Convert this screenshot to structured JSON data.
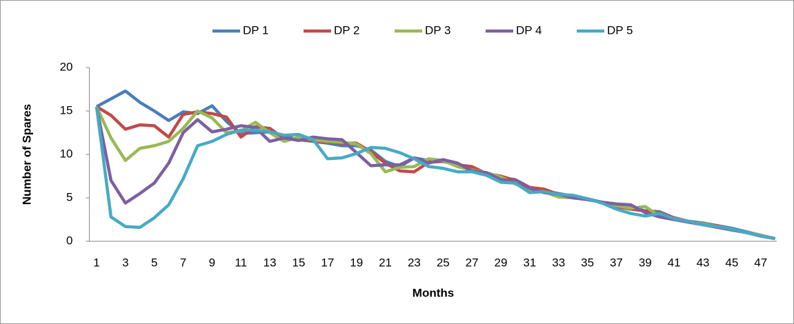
{
  "chart_data": {
    "type": "line",
    "x_label": "Months",
    "y_label": "Number of Spares",
    "categories": [
      1,
      null,
      3,
      null,
      5,
      null,
      7,
      null,
      9,
      null,
      11,
      null,
      13,
      null,
      15,
      null,
      17,
      null,
      19,
      null,
      21,
      null,
      23,
      null,
      25,
      null,
      27,
      null,
      29,
      null,
      31,
      null,
      33,
      null,
      35,
      null,
      37,
      null,
      39,
      null,
      41,
      null,
      43,
      null,
      45,
      null,
      47,
      null
    ],
    "series": [
      {
        "name": "DP 1",
        "color": "#4a7ebb",
        "values": [
          15.5,
          16.4,
          17.3,
          16,
          15,
          13.9,
          14.9,
          14.7,
          15.6,
          13.8,
          12.4,
          12.5,
          12.6,
          12.1,
          11.7,
          11.5,
          11.3,
          11,
          11,
          10.5,
          9.2,
          8.6,
          9.6,
          9.3,
          9.2,
          8.8,
          8.3,
          7.8,
          7.3,
          7.1,
          6.2,
          5.8,
          5.5,
          5.2,
          4.9,
          4.5,
          4.2,
          3.9,
          3.5,
          3.4,
          2.7,
          2.3,
          2.1,
          1.8,
          1.5,
          1.1,
          0.7,
          0.3
        ]
      },
      {
        "name": "DP 2",
        "color": "#be4b48",
        "values": [
          15.5,
          14.5,
          12.9,
          13.4,
          13.3,
          12,
          14.6,
          14.9,
          14.7,
          14.3,
          12,
          13.2,
          13,
          11.8,
          11.7,
          11.6,
          11.4,
          11.3,
          11.3,
          10.3,
          9,
          8.1,
          8,
          9.1,
          9.2,
          8.8,
          8.6,
          7.8,
          7.5,
          7,
          6.2,
          6,
          5.4,
          5.1,
          4.8,
          4.5,
          4,
          3.7,
          3.5,
          3.3,
          2.7,
          2.3,
          2,
          1.8,
          1.4,
          1,
          0.7,
          0.3
        ]
      },
      {
        "name": "DP 3",
        "color": "#98b954",
        "values": [
          15.5,
          11.9,
          9.3,
          10.7,
          11,
          11.5,
          13,
          15,
          14.2,
          12.5,
          12.7,
          13.7,
          12.5,
          11.5,
          12,
          11.7,
          11.5,
          11.4,
          11.2,
          10.1,
          8,
          8.5,
          8.6,
          9.5,
          9.3,
          8.6,
          8.2,
          7.9,
          7.4,
          6.6,
          5.9,
          5.7,
          5.1,
          5,
          4.8,
          4.5,
          4.1,
          3.8,
          4,
          2.9,
          2.6,
          2.2,
          2,
          1.7,
          1.4,
          1,
          0.7,
          0.3
        ]
      },
      {
        "name": "DP 4",
        "color": "#7d5fa0",
        "values": [
          15.5,
          7,
          4.4,
          5.5,
          6.7,
          9,
          12.5,
          14,
          12.6,
          12.9,
          13.3,
          13.1,
          11.5,
          11.9,
          11.6,
          12,
          11.8,
          11.7,
          10.2,
          8.7,
          8.8,
          8.8,
          9.6,
          9,
          9.4,
          9,
          8.1,
          7.9,
          7.1,
          6.9,
          6.1,
          5.6,
          5.4,
          5,
          4.8,
          4.5,
          4.3,
          4.2,
          3.3,
          2.8,
          2.5,
          2.2,
          1.9,
          1.6,
          1.3,
          1,
          0.6,
          0.3
        ]
      },
      {
        "name": "DP 5",
        "color": "#46aac5",
        "values": [
          15.5,
          2.8,
          1.7,
          1.6,
          2.7,
          4.2,
          7.2,
          11,
          11.5,
          12.3,
          12.8,
          12.8,
          12.6,
          12.2,
          12.3,
          11.7,
          9.5,
          9.6,
          10.1,
          10.8,
          10.7,
          10.2,
          9.5,
          8.6,
          8.4,
          8,
          8,
          7.6,
          6.8,
          6.7,
          5.6,
          5.7,
          5.4,
          5.3,
          4.9,
          4.4,
          3.7,
          3.2,
          2.9,
          3.2,
          2.6,
          2.3,
          1.9,
          1.7,
          1.4,
          1,
          0.6,
          0.3
        ]
      }
    ],
    "ylim": [
      0,
      20
    ],
    "yticks": [
      0,
      5,
      10,
      15,
      20
    ],
    "grid": false,
    "legend": "top"
  }
}
